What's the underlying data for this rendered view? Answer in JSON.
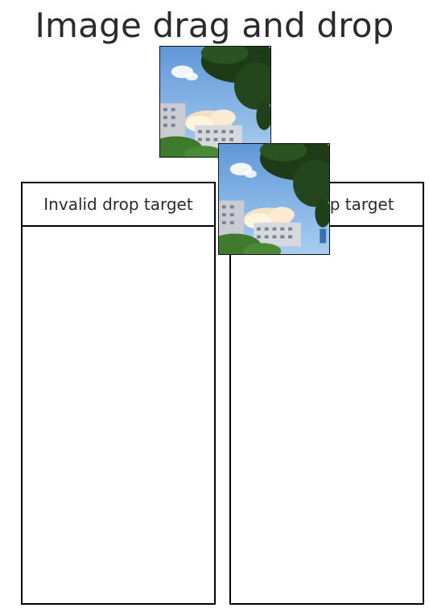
{
  "page": {
    "title": "Image drag and drop"
  },
  "draggable_image": {
    "icon": "sky-buildings-photo",
    "alt": "Photo of sky with clouds, buildings and trees"
  },
  "drag_preview": {
    "icon": "sky-buildings-photo"
  },
  "drop_targets": [
    {
      "label": "Invalid drop target"
    },
    {
      "label": "Valid drop target"
    }
  ],
  "colors": {
    "border": "#000000",
    "text": "#2b2b2b",
    "background": "#ffffff",
    "sky": "#7fb2e6"
  }
}
